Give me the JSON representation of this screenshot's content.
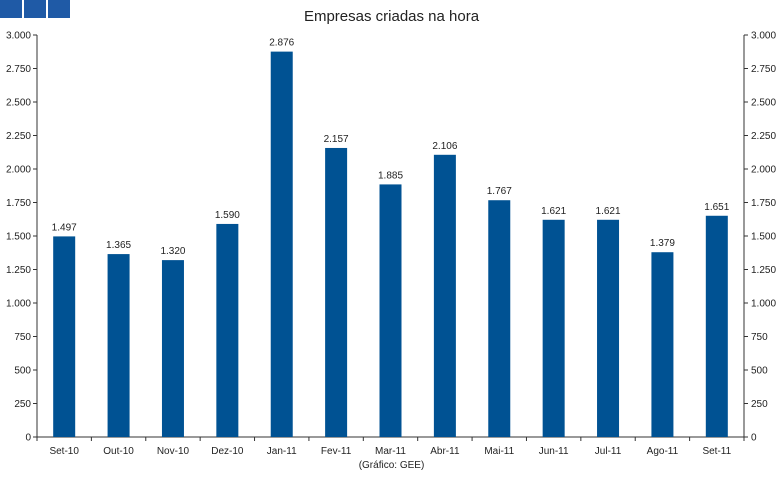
{
  "colors": {
    "bar": "#005293",
    "header_squares": "#1f5aa6",
    "axis": "#333333",
    "text": "#222222"
  },
  "header": {
    "squares": 3
  },
  "chart_data": {
    "type": "bar",
    "title": "Empresas criadas na hora",
    "source": "(Gráfico: GEE)",
    "xlabel": "",
    "ylabel": "",
    "ylim": [
      0,
      3000
    ],
    "yticks": [
      {
        "value": 0,
        "label": "0"
      },
      {
        "value": 250,
        "label": "250"
      },
      {
        "value": 500,
        "label": "500"
      },
      {
        "value": 750,
        "label": "750"
      },
      {
        "value": 1000,
        "label": "1.000"
      },
      {
        "value": 1250,
        "label": "1.250"
      },
      {
        "value": 1500,
        "label": "1.500"
      },
      {
        "value": 1750,
        "label": "1.750"
      },
      {
        "value": 2000,
        "label": "2.000"
      },
      {
        "value": 2250,
        "label": "2.250"
      },
      {
        "value": 2500,
        "label": "2.500"
      },
      {
        "value": 2750,
        "label": "2.750"
      },
      {
        "value": 3000,
        "label": "3.000"
      }
    ],
    "grid": false,
    "secondary_axis": true,
    "categories": [
      "Set-10",
      "Out-10",
      "Nov-10",
      "Dez-10",
      "Jan-11",
      "Fev-11",
      "Mar-11",
      "Abr-11",
      "Mai-11",
      "Jun-11",
      "Jul-11",
      "Ago-11",
      "Set-11"
    ],
    "values": [
      1497,
      1365,
      1320,
      1590,
      2876,
      2157,
      1885,
      2106,
      1767,
      1621,
      1621,
      1379,
      1651
    ],
    "value_labels": [
      "1.497",
      "1.365",
      "1.320",
      "1.590",
      "2.876",
      "2.157",
      "1.885",
      "2.106",
      "1.767",
      "1.621",
      "1.621",
      "1.379",
      "1.651"
    ]
  }
}
